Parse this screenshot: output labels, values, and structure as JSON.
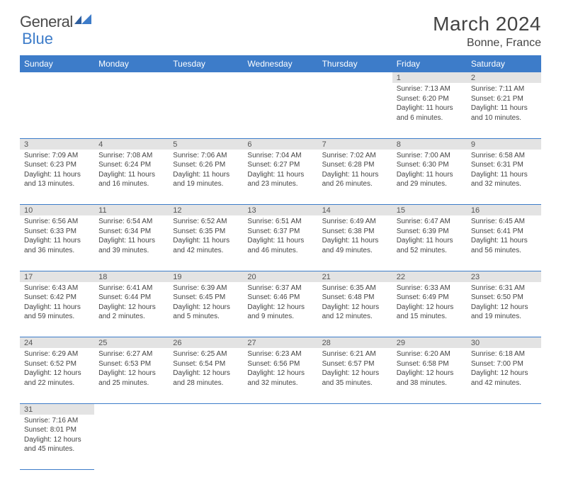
{
  "logo": {
    "text1": "General",
    "text2": "Blue"
  },
  "title": "March 2024",
  "location": "Bonne, France",
  "colors": {
    "header_bg": "#3d7cc9",
    "header_fg": "#ffffff",
    "daynum_bg": "#e3e3e3",
    "border": "#3d7cc9",
    "text": "#444444"
  },
  "weekdays": [
    "Sunday",
    "Monday",
    "Tuesday",
    "Wednesday",
    "Thursday",
    "Friday",
    "Saturday"
  ],
  "weeks": [
    [
      null,
      null,
      null,
      null,
      null,
      {
        "n": "1",
        "sr": "7:13 AM",
        "ss": "6:20 PM",
        "dl": "11 hours and 6 minutes."
      },
      {
        "n": "2",
        "sr": "7:11 AM",
        "ss": "6:21 PM",
        "dl": "11 hours and 10 minutes."
      }
    ],
    [
      {
        "n": "3",
        "sr": "7:09 AM",
        "ss": "6:23 PM",
        "dl": "11 hours and 13 minutes."
      },
      {
        "n": "4",
        "sr": "7:08 AM",
        "ss": "6:24 PM",
        "dl": "11 hours and 16 minutes."
      },
      {
        "n": "5",
        "sr": "7:06 AM",
        "ss": "6:26 PM",
        "dl": "11 hours and 19 minutes."
      },
      {
        "n": "6",
        "sr": "7:04 AM",
        "ss": "6:27 PM",
        "dl": "11 hours and 23 minutes."
      },
      {
        "n": "7",
        "sr": "7:02 AM",
        "ss": "6:28 PM",
        "dl": "11 hours and 26 minutes."
      },
      {
        "n": "8",
        "sr": "7:00 AM",
        "ss": "6:30 PM",
        "dl": "11 hours and 29 minutes."
      },
      {
        "n": "9",
        "sr": "6:58 AM",
        "ss": "6:31 PM",
        "dl": "11 hours and 32 minutes."
      }
    ],
    [
      {
        "n": "10",
        "sr": "6:56 AM",
        "ss": "6:33 PM",
        "dl": "11 hours and 36 minutes."
      },
      {
        "n": "11",
        "sr": "6:54 AM",
        "ss": "6:34 PM",
        "dl": "11 hours and 39 minutes."
      },
      {
        "n": "12",
        "sr": "6:52 AM",
        "ss": "6:35 PM",
        "dl": "11 hours and 42 minutes."
      },
      {
        "n": "13",
        "sr": "6:51 AM",
        "ss": "6:37 PM",
        "dl": "11 hours and 46 minutes."
      },
      {
        "n": "14",
        "sr": "6:49 AM",
        "ss": "6:38 PM",
        "dl": "11 hours and 49 minutes."
      },
      {
        "n": "15",
        "sr": "6:47 AM",
        "ss": "6:39 PM",
        "dl": "11 hours and 52 minutes."
      },
      {
        "n": "16",
        "sr": "6:45 AM",
        "ss": "6:41 PM",
        "dl": "11 hours and 56 minutes."
      }
    ],
    [
      {
        "n": "17",
        "sr": "6:43 AM",
        "ss": "6:42 PM",
        "dl": "11 hours and 59 minutes."
      },
      {
        "n": "18",
        "sr": "6:41 AM",
        "ss": "6:44 PM",
        "dl": "12 hours and 2 minutes."
      },
      {
        "n": "19",
        "sr": "6:39 AM",
        "ss": "6:45 PM",
        "dl": "12 hours and 5 minutes."
      },
      {
        "n": "20",
        "sr": "6:37 AM",
        "ss": "6:46 PM",
        "dl": "12 hours and 9 minutes."
      },
      {
        "n": "21",
        "sr": "6:35 AM",
        "ss": "6:48 PM",
        "dl": "12 hours and 12 minutes."
      },
      {
        "n": "22",
        "sr": "6:33 AM",
        "ss": "6:49 PM",
        "dl": "12 hours and 15 minutes."
      },
      {
        "n": "23",
        "sr": "6:31 AM",
        "ss": "6:50 PM",
        "dl": "12 hours and 19 minutes."
      }
    ],
    [
      {
        "n": "24",
        "sr": "6:29 AM",
        "ss": "6:52 PM",
        "dl": "12 hours and 22 minutes."
      },
      {
        "n": "25",
        "sr": "6:27 AM",
        "ss": "6:53 PM",
        "dl": "12 hours and 25 minutes."
      },
      {
        "n": "26",
        "sr": "6:25 AM",
        "ss": "6:54 PM",
        "dl": "12 hours and 28 minutes."
      },
      {
        "n": "27",
        "sr": "6:23 AM",
        "ss": "6:56 PM",
        "dl": "12 hours and 32 minutes."
      },
      {
        "n": "28",
        "sr": "6:21 AM",
        "ss": "6:57 PM",
        "dl": "12 hours and 35 minutes."
      },
      {
        "n": "29",
        "sr": "6:20 AM",
        "ss": "6:58 PM",
        "dl": "12 hours and 38 minutes."
      },
      {
        "n": "30",
        "sr": "6:18 AM",
        "ss": "7:00 PM",
        "dl": "12 hours and 42 minutes."
      }
    ],
    [
      {
        "n": "31",
        "sr": "7:16 AM",
        "ss": "8:01 PM",
        "dl": "12 hours and 45 minutes."
      },
      null,
      null,
      null,
      null,
      null,
      null
    ]
  ],
  "labels": {
    "sunrise": "Sunrise: ",
    "sunset": "Sunset: ",
    "daylight": "Daylight: "
  }
}
